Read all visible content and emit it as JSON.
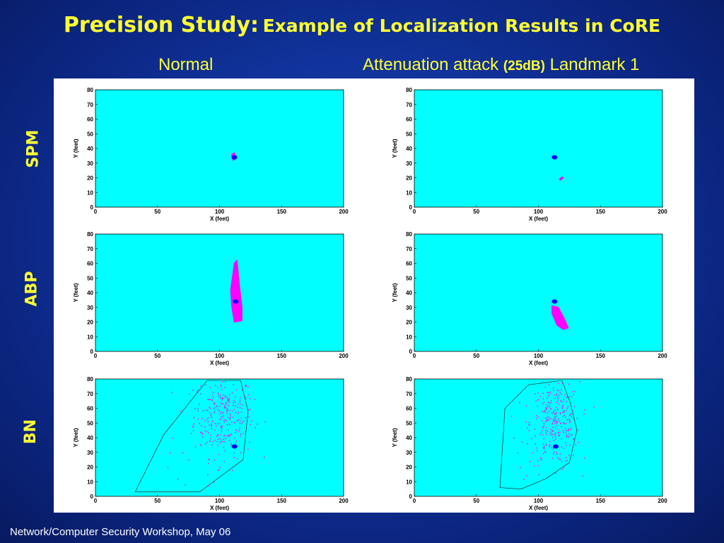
{
  "title": {
    "main": "Precision Study:",
    "sub": "Example of Localization Results in CoRE"
  },
  "columns": {
    "normal": "Normal",
    "attack_prefix": "Attenuation attack",
    "attack_db": "(25dB)",
    "attack_suffix": "Landmark 1"
  },
  "rows": [
    "SPM",
    "ABP",
    "BN"
  ],
  "footer": "Network/Computer Security Workshop, May 06",
  "colors": {
    "plot_bg": "#00ffff",
    "region": "#ff00ff",
    "point": "#0000ff",
    "title": "#ffff33"
  },
  "chart_data": [
    {
      "type": "scatter",
      "row": "SPM",
      "column": "Normal",
      "xlabel": "X (feet)",
      "ylabel": "Y (feet)",
      "xlim": [
        0,
        200
      ],
      "ylim": [
        0,
        80
      ],
      "xticks": [
        0,
        50,
        100,
        150,
        200
      ],
      "yticks": [
        0,
        10,
        20,
        30,
        40,
        50,
        60,
        70,
        80
      ],
      "estimate": [
        112,
        34
      ],
      "region": [
        [
          110,
          36
        ],
        [
          112,
          37
        ],
        [
          113,
          33
        ],
        [
          111,
          32
        ],
        [
          110,
          34
        ]
      ]
    },
    {
      "type": "scatter",
      "row": "SPM",
      "column": "Attenuation attack (25dB) Landmark 1",
      "xlabel": "X (feet)",
      "ylabel": "Y (feet)",
      "xlim": [
        0,
        200
      ],
      "ylim": [
        0,
        80
      ],
      "xticks": [
        0,
        50,
        100,
        150,
        200
      ],
      "yticks": [
        0,
        10,
        20,
        30,
        40,
        50,
        60,
        70,
        80
      ],
      "estimate": [
        113,
        34
      ],
      "region": [
        [
          117,
          19
        ],
        [
          119,
          20.5
        ],
        [
          120,
          20
        ],
        [
          118,
          18.5
        ]
      ]
    },
    {
      "type": "scatter",
      "row": "ABP",
      "column": "Normal",
      "xlabel": "X (feet)",
      "ylabel": "Y (feet)",
      "xlim": [
        0,
        200
      ],
      "ylim": [
        0,
        80
      ],
      "xticks": [
        0,
        50,
        100,
        150,
        200
      ],
      "yticks": [
        0,
        10,
        20,
        30,
        40,
        50,
        60,
        70,
        80
      ],
      "estimate": [
        113,
        34
      ],
      "region": [
        [
          112,
          60
        ],
        [
          114,
          62
        ],
        [
          116,
          45
        ],
        [
          118,
          30
        ],
        [
          118,
          21
        ],
        [
          112,
          20
        ],
        [
          110,
          30
        ],
        [
          109,
          42
        ]
      ]
    },
    {
      "type": "scatter",
      "row": "ABP",
      "column": "Attenuation attack (25dB) Landmark 1",
      "xlabel": "X (feet)",
      "ylabel": "Y (feet)",
      "xlim": [
        0,
        200
      ],
      "ylim": [
        0,
        80
      ],
      "xticks": [
        0,
        50,
        100,
        150,
        200
      ],
      "yticks": [
        0,
        10,
        20,
        30,
        40,
        50,
        60,
        70,
        80
      ],
      "estimate": [
        113,
        34
      ],
      "region": [
        [
          111,
          31
        ],
        [
          116,
          30
        ],
        [
          121,
          22
        ],
        [
          124,
          16
        ],
        [
          120,
          15
        ],
        [
          115,
          18
        ],
        [
          111,
          26
        ]
      ]
    },
    {
      "type": "scatter",
      "row": "BN",
      "column": "Normal",
      "xlabel": "X (feet)",
      "ylabel": "Y (feet)",
      "xlim": [
        0,
        200
      ],
      "ylim": [
        0,
        80
      ],
      "xticks": [
        0,
        50,
        100,
        150,
        200
      ],
      "yticks": [
        0,
        10,
        20,
        30,
        40,
        50,
        60,
        70,
        80
      ],
      "estimate": [
        112,
        34
      ],
      "hull": [
        [
          32,
          3
        ],
        [
          55,
          42
        ],
        [
          90,
          79
        ],
        [
          117,
          79
        ],
        [
          123,
          58
        ],
        [
          119,
          25
        ],
        [
          84,
          3
        ]
      ],
      "cloud": {
        "cx": 103,
        "cy": 55,
        "sx": 12,
        "sy": 14,
        "n": 300
      },
      "outliers": [
        [
          62,
          40
        ],
        [
          70,
          30
        ],
        [
          78,
          48
        ],
        [
          58,
          20
        ],
        [
          90,
          15
        ],
        [
          85,
          35
        ],
        [
          95,
          10
        ],
        [
          66,
          12
        ],
        [
          80,
          60
        ],
        [
          100,
          20
        ],
        [
          110,
          18
        ],
        [
          75,
          25
        ],
        [
          88,
          45
        ],
        [
          60,
          30
        ],
        [
          72,
          8
        ]
      ]
    },
    {
      "type": "scatter",
      "row": "BN",
      "column": "Attenuation attack (25dB) Landmark 1",
      "xlabel": "X (feet)",
      "ylabel": "Y (feet)",
      "xlim": [
        0,
        200
      ],
      "ylim": [
        0,
        80
      ],
      "xticks": [
        0,
        50,
        100,
        150,
        200
      ],
      "yticks": [
        0,
        10,
        20,
        30,
        40,
        50,
        60,
        70,
        80
      ],
      "estimate": [
        114,
        34
      ],
      "hull": [
        [
          69,
          6
        ],
        [
          73,
          60
        ],
        [
          92,
          76
        ],
        [
          119,
          79
        ],
        [
          126,
          63
        ],
        [
          131,
          45
        ],
        [
          125,
          23
        ],
        [
          106,
          12
        ],
        [
          86,
          5
        ]
      ],
      "cloud": {
        "cx": 113,
        "cy": 50,
        "sx": 10,
        "sy": 14,
        "n": 300
      },
      "outliers": [
        [
          80,
          40
        ],
        [
          85,
          20
        ],
        [
          78,
          55
        ],
        [
          95,
          30
        ],
        [
          100,
          15
        ],
        [
          90,
          62
        ],
        [
          120,
          20
        ],
        [
          125,
          35
        ],
        [
          88,
          12
        ],
        [
          102,
          25
        ],
        [
          83,
          30
        ],
        [
          118,
          70
        ]
      ]
    }
  ]
}
